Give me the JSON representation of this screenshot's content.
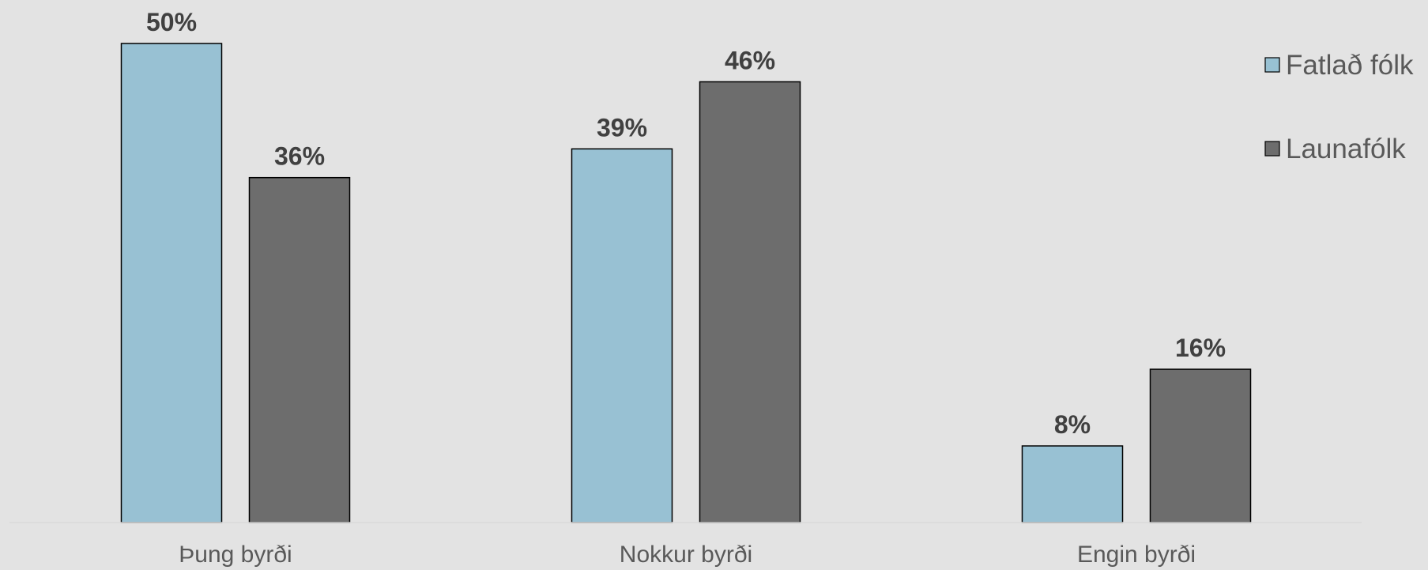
{
  "chart_data": {
    "type": "bar",
    "categories": [
      "Þung byrði",
      "Nokkur byrði",
      "Engin byrði"
    ],
    "series": [
      {
        "name": "Fatlað fólk",
        "values": [
          50,
          39,
          8
        ],
        "color": "#98c1d3"
      },
      {
        "name": "Launafólk",
        "values": [
          36,
          46,
          16
        ],
        "color": "#6d6d6d"
      }
    ],
    "value_suffix": "%",
    "title": "",
    "xlabel": "",
    "ylabel": "",
    "ylim": [
      0,
      50
    ],
    "grid": false,
    "legend_position": "top-right",
    "axis_line_color": "#d9d9d9",
    "bar_border_color": "#000000",
    "background": "#e3e3e3"
  }
}
